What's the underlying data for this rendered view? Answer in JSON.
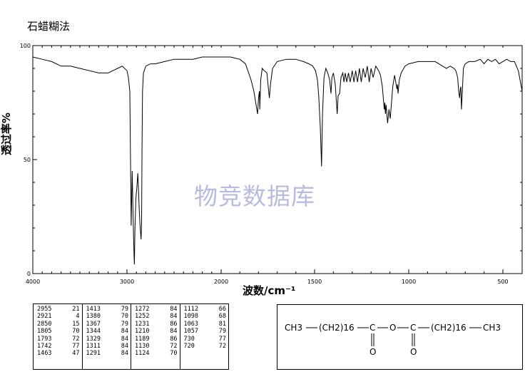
{
  "title": "石蜡糊法",
  "watermark": "物竞数据库",
  "peaks": [
    [
      "2955",
      "21"
    ],
    [
      "2921",
      "4"
    ],
    [
      "2850",
      "15"
    ],
    [
      "1805",
      "70"
    ],
    [
      "1793",
      "72"
    ],
    [
      "1742",
      "77"
    ],
    [
      "1463",
      "47"
    ],
    [
      "1413",
      "79"
    ],
    [
      "1380",
      "70"
    ],
    [
      "1367",
      "79"
    ],
    [
      "1344",
      "84"
    ],
    [
      "1329",
      "84"
    ],
    [
      "1311",
      "84"
    ],
    [
      "1291",
      "84"
    ],
    [
      "1272",
      "84"
    ],
    [
      "1252",
      "84"
    ],
    [
      "1231",
      "86"
    ],
    [
      "1210",
      "84"
    ],
    [
      "1189",
      "86"
    ],
    [
      "1130",
      "72"
    ],
    [
      "1124",
      "70"
    ],
    [
      "1112",
      "66"
    ],
    [
      "1098",
      "68"
    ],
    [
      "1063",
      "81"
    ],
    [
      "1057",
      "79"
    ],
    [
      "730",
      "77"
    ],
    [
      "720",
      "72"
    ]
  ],
  "structure": {
    "ch3_left": "CH3",
    "chain_left": "(CH2)16",
    "c1": "C",
    "o1": "O",
    "o_bridge": "O",
    "c2": "C",
    "o2": "O",
    "chain_right": "(CH2)16",
    "ch3_right": "CH3"
  },
  "chart_data": {
    "type": "line",
    "xlabel": "波数/cm⁻¹",
    "ylabel": "透过率%",
    "xlim": [
      4000,
      400
    ],
    "ylim": [
      0,
      100
    ],
    "x_ticks": [
      4000,
      3000,
      2000,
      1500,
      1000,
      500
    ],
    "y_ticks": [
      0,
      50,
      100
    ],
    "series": [
      {
        "x": [
          4000,
          3900,
          3800,
          3700,
          3600,
          3500,
          3400,
          3300,
          3200,
          3150,
          3100,
          3050,
          3000,
          2985,
          2970,
          2960,
          2955,
          2945,
          2935,
          2925,
          2921,
          2915,
          2905,
          2895,
          2885,
          2875,
          2870,
          2862,
          2856,
          2850,
          2845,
          2840,
          2835,
          2825,
          2800,
          2750,
          2700,
          2600,
          2500,
          2400,
          2300,
          2200,
          2100,
          2000,
          1950,
          1900,
          1870,
          1840,
          1825,
          1815,
          1805,
          1800,
          1795,
          1793,
          1788,
          1780,
          1770,
          1755,
          1748,
          1742,
          1736,
          1725,
          1700,
          1650,
          1600,
          1560,
          1530,
          1510,
          1495,
          1485,
          1478,
          1470,
          1463,
          1458,
          1450,
          1440,
          1430,
          1420,
          1413,
          1408,
          1400,
          1390,
          1380,
          1375,
          1367,
          1360,
          1350,
          1344,
          1337,
          1329,
          1320,
          1311,
          1300,
          1291,
          1282,
          1272,
          1262,
          1252,
          1242,
          1231,
          1220,
          1210,
          1200,
          1189,
          1175,
          1160,
          1150,
          1140,
          1130,
          1127,
          1124,
          1120,
          1112,
          1105,
          1098,
          1085,
          1075,
          1063,
          1060,
          1057,
          1050,
          1040,
          1020,
          1000,
          950,
          900,
          860,
          840,
          820,
          800,
          780,
          760,
          750,
          740,
          735,
          730,
          726,
          723,
          720,
          715,
          710,
          700,
          680,
          650,
          620,
          600,
          580,
          560,
          540,
          520,
          500,
          480,
          460,
          440,
          420,
          400
        ],
        "y": [
          95,
          94,
          93,
          91,
          91,
          90,
          89,
          88,
          88,
          89,
          90,
          91,
          89,
          86,
          80,
          40,
          21,
          45,
          25,
          8,
          4,
          20,
          33,
          38,
          44,
          34,
          28,
          22,
          18,
          15,
          22,
          55,
          80,
          88,
          91,
          92,
          92,
          93,
          94,
          94,
          94,
          95,
          95,
          95,
          95,
          94,
          92,
          85,
          80,
          75,
          70,
          77,
          80,
          72,
          85,
          90,
          89,
          88,
          82,
          77,
          83,
          90,
          93,
          94,
          94,
          93,
          92,
          91,
          89,
          85,
          78,
          65,
          47,
          70,
          86,
          90,
          88,
          85,
          79,
          86,
          88,
          83,
          70,
          78,
          79,
          86,
          88,
          84,
          88,
          84,
          88,
          84,
          89,
          84,
          89,
          84,
          90,
          84,
          90,
          86,
          91,
          84,
          90,
          86,
          91,
          89,
          87,
          82,
          72,
          75,
          70,
          74,
          66,
          72,
          68,
          82,
          87,
          81,
          83,
          79,
          85,
          88,
          91,
          92,
          93,
          93,
          93,
          92,
          91,
          90,
          91,
          90,
          89,
          86,
          80,
          77,
          81,
          82,
          72,
          80,
          90,
          92,
          93,
          93,
          94,
          92,
          94,
          93,
          94,
          92,
          93,
          94,
          93,
          93,
          89,
          80
        ]
      }
    ]
  }
}
